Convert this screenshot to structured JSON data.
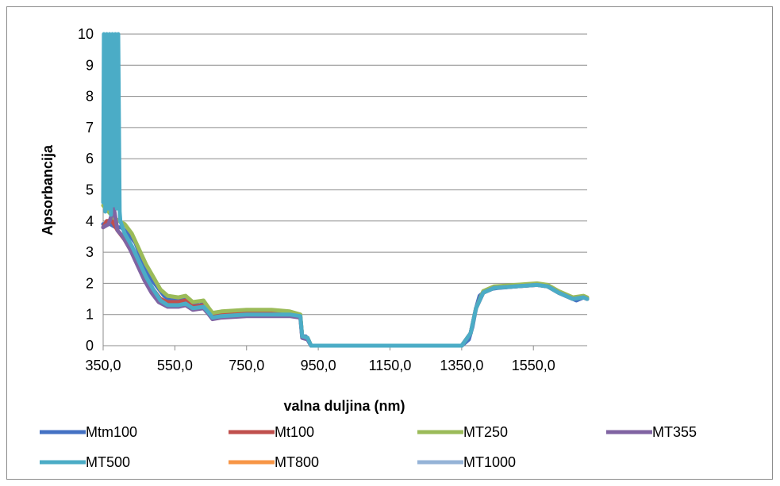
{
  "chart_data": {
    "type": "line",
    "title": "",
    "xlabel": "valna duljina (nm)",
    "ylabel": "Apsorbancija",
    "xlim": [
      350,
      1700
    ],
    "ylim": [
      0,
      10
    ],
    "x_ticks": [
      "350,0",
      "550,0",
      "750,0",
      "950,0",
      "1150,0",
      "1350,0",
      "1550,0"
    ],
    "x_tick_values": [
      350,
      550,
      750,
      950,
      1150,
      1350,
      1550
    ],
    "y_ticks": [
      "0",
      "1",
      "2",
      "3",
      "4",
      "5",
      "6",
      "7",
      "8",
      "9",
      "10"
    ],
    "grid": "horizontal",
    "legend_position": "bottom",
    "series": [
      {
        "name": "Mtm100",
        "color": "#4472c4",
        "width": 5,
        "points": [
          [
            350,
            3.9
          ],
          [
            370,
            3.9
          ],
          [
            385,
            3.8
          ],
          [
            400,
            3.8
          ],
          [
            420,
            3.6
          ],
          [
            440,
            3.3
          ],
          [
            460,
            2.7
          ],
          [
            480,
            2.2
          ],
          [
            500,
            1.9
          ],
          [
            520,
            1.6
          ],
          [
            540,
            1.45
          ],
          [
            560,
            1.45
          ],
          [
            580,
            1.5
          ],
          [
            590,
            1.45
          ],
          [
            600,
            1.3
          ],
          [
            620,
            1.3
          ],
          [
            630,
            1.35
          ],
          [
            640,
            1.2
          ],
          [
            650,
            0.95
          ],
          [
            660,
            0.95
          ],
          [
            680,
            1.05
          ],
          [
            700,
            1.05
          ],
          [
            750,
            1.1
          ],
          [
            800,
            1.1
          ],
          [
            850,
            1.05
          ],
          [
            880,
            1.0
          ],
          [
            900,
            0.95
          ],
          [
            905,
            0.3
          ],
          [
            915,
            0.3
          ],
          [
            925,
            0.1
          ],
          [
            930,
            0
          ],
          [
            1000,
            0
          ],
          [
            1200,
            0
          ],
          [
            1350,
            0
          ],
          [
            1370,
            0.2
          ],
          [
            1380,
            0.6
          ],
          [
            1390,
            1.2
          ],
          [
            1400,
            1.6
          ],
          [
            1420,
            1.8
          ],
          [
            1450,
            1.85
          ],
          [
            1500,
            1.9
          ],
          [
            1550,
            1.95
          ],
          [
            1580,
            1.95
          ],
          [
            1600,
            1.85
          ],
          [
            1620,
            1.7
          ],
          [
            1650,
            1.55
          ],
          [
            1670,
            1.45
          ],
          [
            1690,
            1.55
          ],
          [
            1700,
            1.5
          ]
        ]
      },
      {
        "name": "Mt100",
        "color": "#c0504d",
        "width": 5,
        "points": [
          [
            350,
            3.8
          ],
          [
            360,
            4.0
          ],
          [
            375,
            4.0
          ],
          [
            390,
            3.7
          ],
          [
            410,
            3.4
          ],
          [
            430,
            3.0
          ],
          [
            450,
            2.5
          ],
          [
            470,
            2.1
          ],
          [
            490,
            1.8
          ],
          [
            510,
            1.5
          ],
          [
            530,
            1.4
          ],
          [
            560,
            1.4
          ],
          [
            580,
            1.45
          ],
          [
            600,
            1.25
          ],
          [
            630,
            1.3
          ],
          [
            645,
            1.1
          ],
          [
            655,
            0.95
          ],
          [
            680,
            1.0
          ],
          [
            720,
            1.05
          ],
          [
            800,
            1.05
          ],
          [
            860,
            1.0
          ],
          [
            900,
            0.95
          ],
          [
            905,
            0.3
          ],
          [
            920,
            0.25
          ],
          [
            930,
            0
          ],
          [
            1350,
            0
          ],
          [
            1375,
            0.4
          ],
          [
            1390,
            1.2
          ],
          [
            1410,
            1.7
          ],
          [
            1440,
            1.85
          ],
          [
            1500,
            1.9
          ],
          [
            1560,
            1.95
          ],
          [
            1590,
            1.9
          ],
          [
            1620,
            1.7
          ],
          [
            1660,
            1.5
          ],
          [
            1690,
            1.55
          ],
          [
            1700,
            1.5
          ]
        ]
      },
      {
        "name": "MT250",
        "color": "#9bbb59",
        "width": 5,
        "points": [
          [
            350,
            4.5
          ],
          [
            365,
            4.3
          ],
          [
            380,
            4.1
          ],
          [
            395,
            4.0
          ],
          [
            410,
            3.9
          ],
          [
            430,
            3.6
          ],
          [
            450,
            3.1
          ],
          [
            470,
            2.6
          ],
          [
            490,
            2.2
          ],
          [
            510,
            1.8
          ],
          [
            530,
            1.6
          ],
          [
            560,
            1.55
          ],
          [
            580,
            1.6
          ],
          [
            600,
            1.4
          ],
          [
            630,
            1.45
          ],
          [
            645,
            1.2
          ],
          [
            655,
            1.05
          ],
          [
            680,
            1.1
          ],
          [
            750,
            1.15
          ],
          [
            820,
            1.15
          ],
          [
            870,
            1.1
          ],
          [
            900,
            1.0
          ],
          [
            905,
            0.3
          ],
          [
            920,
            0.25
          ],
          [
            930,
            0
          ],
          [
            1350,
            0
          ],
          [
            1375,
            0.4
          ],
          [
            1390,
            1.2
          ],
          [
            1410,
            1.75
          ],
          [
            1440,
            1.9
          ],
          [
            1500,
            1.95
          ],
          [
            1560,
            2.0
          ],
          [
            1590,
            1.95
          ],
          [
            1620,
            1.75
          ],
          [
            1660,
            1.55
          ],
          [
            1690,
            1.6
          ],
          [
            1700,
            1.55
          ]
        ]
      },
      {
        "name": "MT355",
        "color": "#8064a2",
        "width": 5,
        "points": [
          [
            350,
            3.8
          ],
          [
            365,
            3.9
          ],
          [
            380,
            4.4
          ],
          [
            390,
            3.7
          ],
          [
            405,
            3.5
          ],
          [
            425,
            3.1
          ],
          [
            445,
            2.6
          ],
          [
            465,
            2.1
          ],
          [
            485,
            1.7
          ],
          [
            505,
            1.4
          ],
          [
            530,
            1.25
          ],
          [
            560,
            1.25
          ],
          [
            580,
            1.3
          ],
          [
            600,
            1.15
          ],
          [
            630,
            1.2
          ],
          [
            645,
            1.0
          ],
          [
            655,
            0.85
          ],
          [
            680,
            0.9
          ],
          [
            750,
            0.95
          ],
          [
            820,
            0.95
          ],
          [
            870,
            0.95
          ],
          [
            900,
            0.9
          ],
          [
            905,
            0.25
          ],
          [
            920,
            0.2
          ],
          [
            930,
            0
          ],
          [
            1350,
            0
          ],
          [
            1375,
            0.4
          ],
          [
            1390,
            1.2
          ],
          [
            1410,
            1.7
          ],
          [
            1440,
            1.85
          ],
          [
            1500,
            1.9
          ],
          [
            1560,
            1.95
          ],
          [
            1590,
            1.9
          ],
          [
            1620,
            1.7
          ],
          [
            1660,
            1.5
          ],
          [
            1690,
            1.55
          ],
          [
            1700,
            1.5
          ]
        ]
      },
      {
        "name": "MT500",
        "color": "#4bacc6",
        "width": 5,
        "points": [
          [
            350,
            4.6
          ],
          [
            352,
            10
          ],
          [
            356,
            4.3
          ],
          [
            360,
            10
          ],
          [
            364,
            4.4
          ],
          [
            368,
            10
          ],
          [
            372,
            4.2
          ],
          [
            376,
            10
          ],
          [
            380,
            4.5
          ],
          [
            384,
            10
          ],
          [
            388,
            4.4
          ],
          [
            392,
            10
          ],
          [
            396,
            4.3
          ],
          [
            398,
            4.0
          ],
          [
            410,
            3.6
          ],
          [
            430,
            3.2
          ],
          [
            450,
            2.7
          ],
          [
            470,
            2.2
          ],
          [
            490,
            1.8
          ],
          [
            510,
            1.45
          ],
          [
            530,
            1.3
          ],
          [
            560,
            1.3
          ],
          [
            580,
            1.35
          ],
          [
            600,
            1.2
          ],
          [
            630,
            1.25
          ],
          [
            645,
            1.05
          ],
          [
            655,
            0.9
          ],
          [
            680,
            0.95
          ],
          [
            750,
            1.0
          ],
          [
            820,
            1.0
          ],
          [
            870,
            1.0
          ],
          [
            900,
            0.95
          ],
          [
            905,
            0.3
          ],
          [
            920,
            0.25
          ],
          [
            930,
            0
          ],
          [
            1350,
            0
          ],
          [
            1375,
            0.4
          ],
          [
            1390,
            1.2
          ],
          [
            1410,
            1.7
          ],
          [
            1440,
            1.85
          ],
          [
            1500,
            1.9
          ],
          [
            1560,
            1.95
          ],
          [
            1590,
            1.9
          ],
          [
            1620,
            1.7
          ],
          [
            1660,
            1.5
          ],
          [
            1690,
            1.55
          ],
          [
            1700,
            1.5
          ]
        ]
      },
      {
        "name": "MT800",
        "color": "#f79646",
        "width": 5,
        "points": []
      },
      {
        "name": "MT1000",
        "color": "#95b3d7",
        "width": 5,
        "points": []
      }
    ]
  }
}
